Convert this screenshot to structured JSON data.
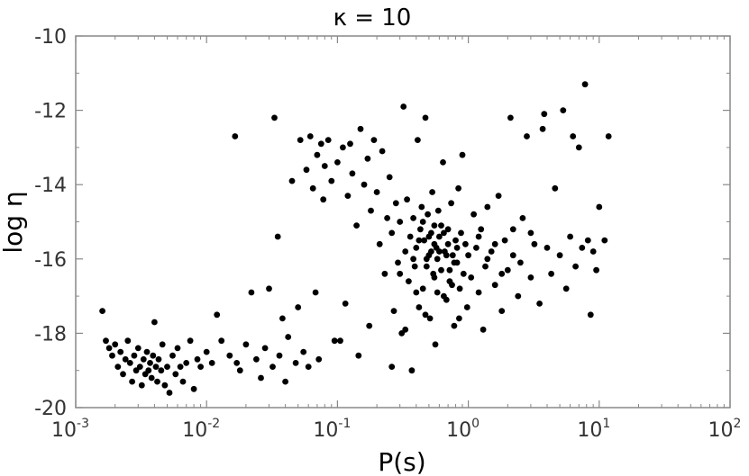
{
  "chart_data": {
    "type": "scatter",
    "title": "κ = 10",
    "xlabel": "P(s)",
    "ylabel": "log η",
    "x_scale": "log",
    "xlim": [
      0.001,
      100
    ],
    "ylim": [
      -20,
      -10
    ],
    "x_ticks": [
      {
        "value": 0.001,
        "base": "10",
        "exp": "-3"
      },
      {
        "value": 0.01,
        "base": "10",
        "exp": "-2"
      },
      {
        "value": 0.1,
        "base": "10",
        "exp": "-1"
      },
      {
        "value": 1,
        "base": "10",
        "exp": "0"
      },
      {
        "value": 10,
        "base": "10",
        "exp": "1"
      },
      {
        "value": 100,
        "base": "10",
        "exp": "2"
      }
    ],
    "y_ticks": [
      {
        "value": -10,
        "label": "-10"
      },
      {
        "value": -12,
        "label": "-12"
      },
      {
        "value": -14,
        "label": "-14"
      },
      {
        "value": -16,
        "label": "-16"
      },
      {
        "value": -18,
        "label": "-18"
      },
      {
        "value": -20,
        "label": "-20"
      }
    ],
    "grid": false,
    "marker_color": "#000000",
    "series": [
      {
        "points": [
          [
            0.0016,
            -17.4
          ],
          [
            0.0017,
            -18.2
          ],
          [
            0.0018,
            -18.4
          ],
          [
            0.0019,
            -18.6
          ],
          [
            0.002,
            -18.3
          ],
          [
            0.0021,
            -18.9
          ],
          [
            0.0022,
            -18.5
          ],
          [
            0.0023,
            -19.1
          ],
          [
            0.0024,
            -18.7
          ],
          [
            0.0025,
            -18.2
          ],
          [
            0.0026,
            -18.8
          ],
          [
            0.0027,
            -19.3
          ],
          [
            0.0028,
            -18.6
          ],
          [
            0.0029,
            -19.0
          ],
          [
            0.003,
            -18.4
          ],
          [
            0.0031,
            -18.9
          ],
          [
            0.0032,
            -19.4
          ],
          [
            0.0033,
            -18.7
          ],
          [
            0.0034,
            -19.1
          ],
          [
            0.0035,
            -18.5
          ],
          [
            0.0036,
            -19.0
          ],
          [
            0.0037,
            -18.8
          ],
          [
            0.0038,
            -19.2
          ],
          [
            0.0039,
            -18.6
          ],
          [
            0.004,
            -17.7
          ],
          [
            0.0041,
            -18.9
          ],
          [
            0.0042,
            -19.3
          ],
          [
            0.0043,
            -18.7
          ],
          [
            0.0045,
            -19.0
          ],
          [
            0.0046,
            -18.3
          ],
          [
            0.0048,
            -19.4
          ],
          [
            0.005,
            -18.9
          ],
          [
            0.0052,
            -19.6
          ],
          [
            0.0055,
            -18.6
          ],
          [
            0.0058,
            -19.1
          ],
          [
            0.006,
            -18.4
          ],
          [
            0.0063,
            -18.9
          ],
          [
            0.0066,
            -19.3
          ],
          [
            0.007,
            -18.8
          ],
          [
            0.0075,
            -18.2
          ],
          [
            0.008,
            -19.5
          ],
          [
            0.0085,
            -18.7
          ],
          [
            0.009,
            -18.9
          ],
          [
            0.01,
            -18.5
          ],
          [
            0.011,
            -18.8
          ],
          [
            0.012,
            -17.5
          ],
          [
            0.013,
            -18.2
          ],
          [
            0.0165,
            -12.7
          ],
          [
            0.015,
            -18.6
          ],
          [
            0.017,
            -18.8
          ],
          [
            0.018,
            -19.0
          ],
          [
            0.02,
            -18.3
          ],
          [
            0.022,
            -16.9
          ],
          [
            0.024,
            -18.7
          ],
          [
            0.026,
            -19.2
          ],
          [
            0.028,
            -18.4
          ],
          [
            0.03,
            -16.8
          ],
          [
            0.032,
            -18.9
          ],
          [
            0.033,
            -12.2
          ],
          [
            0.035,
            -15.4
          ],
          [
            0.036,
            -18.6
          ],
          [
            0.038,
            -17.6
          ],
          [
            0.04,
            -19.3
          ],
          [
            0.042,
            -18.1
          ],
          [
            0.045,
            -13.9
          ],
          [
            0.048,
            -18.8
          ],
          [
            0.05,
            -17.3
          ],
          [
            0.052,
            -12.8
          ],
          [
            0.055,
            -18.5
          ],
          [
            0.058,
            -13.6
          ],
          [
            0.06,
            -18.9
          ],
          [
            0.062,
            -12.7
          ],
          [
            0.065,
            -14.1
          ],
          [
            0.068,
            -16.9
          ],
          [
            0.07,
            -13.2
          ],
          [
            0.072,
            -18.7
          ],
          [
            0.075,
            -12.9
          ],
          [
            0.078,
            -14.4
          ],
          [
            0.08,
            -13.5
          ],
          [
            0.085,
            -12.8
          ],
          [
            0.09,
            -13.9
          ],
          [
            0.095,
            -18.2
          ],
          [
            0.1,
            -13.4
          ],
          [
            0.105,
            -18.2
          ],
          [
            0.11,
            -13.0
          ],
          [
            0.115,
            -17.2
          ],
          [
            0.12,
            -14.3
          ],
          [
            0.125,
            -12.9
          ],
          [
            0.13,
            -13.7
          ],
          [
            0.14,
            -15.1
          ],
          [
            0.145,
            -18.6
          ],
          [
            0.15,
            -12.5
          ],
          [
            0.16,
            -14.0
          ],
          [
            0.17,
            -13.3
          ],
          [
            0.175,
            -17.8
          ],
          [
            0.18,
            -14.7
          ],
          [
            0.19,
            -12.8
          ],
          [
            0.2,
            -14.2
          ],
          [
            0.21,
            -15.6
          ],
          [
            0.22,
            -13.1
          ],
          [
            0.23,
            -16.4
          ],
          [
            0.24,
            -14.9
          ],
          [
            0.25,
            -13.8
          ],
          [
            0.26,
            -15.3
          ],
          [
            0.27,
            -17.4
          ],
          [
            0.28,
            -14.5
          ],
          [
            0.29,
            -16.1
          ],
          [
            0.3,
            -15.0
          ],
          [
            0.31,
            -18.0
          ],
          [
            0.32,
            -11.9
          ],
          [
            0.33,
            -15.8
          ],
          [
            0.34,
            -14.4
          ],
          [
            0.35,
            -16.6
          ],
          [
            0.36,
            -15.4
          ],
          [
            0.37,
            -19.0
          ],
          [
            0.38,
            -14.9
          ],
          [
            0.39,
            -16.2
          ],
          [
            0.4,
            -15.7
          ],
          [
            0.41,
            -12.8
          ],
          [
            0.42,
            -17.3
          ],
          [
            0.43,
            -15.2
          ],
          [
            0.44,
            -14.6
          ],
          [
            0.45,
            -16.8
          ],
          [
            0.46,
            -15.5
          ],
          [
            0.47,
            -12.2
          ],
          [
            0.48,
            -16.0
          ],
          [
            0.49,
            -14.8
          ],
          [
            0.5,
            -15.9
          ],
          [
            0.51,
            -17.6
          ],
          [
            0.52,
            -15.3
          ],
          [
            0.53,
            -14.2
          ],
          [
            0.54,
            -16.4
          ],
          [
            0.55,
            -15.1
          ],
          [
            0.56,
            -18.3
          ],
          [
            0.57,
            -15.7
          ],
          [
            0.58,
            -16.9
          ],
          [
            0.59,
            -14.7
          ],
          [
            0.6,
            -15.4
          ],
          [
            0.62,
            -16.3
          ],
          [
            0.64,
            -13.4
          ],
          [
            0.66,
            -15.8
          ],
          [
            0.68,
            -17.1
          ],
          [
            0.7,
            -15.2
          ],
          [
            0.72,
            -16.6
          ],
          [
            0.74,
            -14.5
          ],
          [
            0.76,
            -15.9
          ],
          [
            0.78,
            -17.8
          ],
          [
            0.8,
            -15.5
          ],
          [
            0.82,
            -16.1
          ],
          [
            0.84,
            -14.1
          ],
          [
            0.86,
            -16.8
          ],
          [
            0.88,
            -15.3
          ],
          [
            0.9,
            -13.2
          ],
          [
            0.92,
            -16.4
          ],
          [
            0.95,
            -15.6
          ],
          [
            0.98,
            -17.3
          ],
          [
            1.0,
            -15.9
          ],
          [
            1.05,
            -16.5
          ],
          [
            1.1,
            -14.8
          ],
          [
            1.15,
            -15.7
          ],
          [
            1.2,
            -16.9
          ],
          [
            1.25,
            -15.2
          ],
          [
            1.3,
            -17.9
          ],
          [
            1.35,
            -16.2
          ],
          [
            1.4,
            -14.6
          ],
          [
            1.5,
            -15.8
          ],
          [
            1.6,
            -16.7
          ],
          [
            1.7,
            -14.3
          ],
          [
            1.8,
            -17.4
          ],
          [
            1.9,
            -15.5
          ],
          [
            2.0,
            -16.3
          ],
          [
            2.1,
            -12.2
          ],
          [
            2.2,
            -15.9
          ],
          [
            2.4,
            -17.0
          ],
          [
            2.6,
            -14.9
          ],
          [
            2.8,
            -12.7
          ],
          [
            3.0,
            -16.5
          ],
          [
            3.2,
            -15.6
          ],
          [
            3.5,
            -17.2
          ],
          [
            3.7,
            -12.5
          ],
          [
            3.8,
            -12.1
          ],
          [
            4.0,
            -15.7
          ],
          [
            4.3,
            -16.4
          ],
          [
            4.6,
            -14.1
          ],
          [
            5.0,
            -15.9
          ],
          [
            5.3,
            -12.0
          ],
          [
            5.6,
            -16.8
          ],
          [
            6.0,
            -15.4
          ],
          [
            6.3,
            -12.7
          ],
          [
            6.6,
            -16.2
          ],
          [
            7.0,
            -13.0
          ],
          [
            7.4,
            -15.7
          ],
          [
            7.8,
            -11.3
          ],
          [
            8.2,
            -15.5
          ],
          [
            8.6,
            -17.5
          ],
          [
            9.0,
            -15.8
          ],
          [
            9.5,
            -16.3
          ],
          [
            10.0,
            -14.6
          ],
          [
            11.0,
            -15.5
          ],
          [
            11.8,
            -12.7
          ],
          [
            0.26,
            -18.9
          ],
          [
            0.33,
            -17.9
          ],
          [
            0.4,
            -16.9
          ],
          [
            0.47,
            -17.5
          ],
          [
            0.55,
            -16.5
          ],
          [
            0.65,
            -17.0
          ],
          [
            0.75,
            -16.7
          ],
          [
            0.85,
            -17.6
          ],
          [
            0.45,
            -15.0
          ],
          [
            0.5,
            -15.4
          ],
          [
            0.55,
            -15.6
          ],
          [
            0.6,
            -15.8
          ],
          [
            0.65,
            -15.3
          ],
          [
            0.7,
            -15.6
          ],
          [
            0.48,
            -16.2
          ],
          [
            0.58,
            -16.0
          ],
          [
            0.68,
            -15.9
          ],
          [
            0.78,
            -16.1
          ],
          [
            0.42,
            -15.5
          ],
          [
            0.52,
            -15.8
          ],
          [
            0.62,
            -15.1
          ],
          [
            0.72,
            -16.3
          ],
          [
            0.82,
            -15.7
          ],
          [
            0.38,
            -16.0
          ],
          [
            1.2,
            -15.4
          ],
          [
            1.4,
            -16.0
          ],
          [
            1.6,
            -15.6
          ],
          [
            1.8,
            -16.4
          ],
          [
            2.2,
            -15.2
          ],
          [
            2.5,
            -16.1
          ],
          [
            3.0,
            -15.3
          ],
          [
            0.3,
            -16.4
          ]
        ]
      }
    ]
  }
}
